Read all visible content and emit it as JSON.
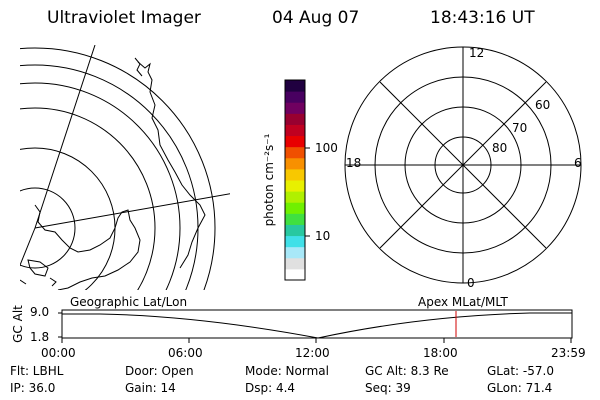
{
  "header": {
    "instrument": "Ultraviolet Imager",
    "date": "04 Aug 07",
    "time": "18:43:16 UT"
  },
  "colorbar": {
    "unit_label": "photon cm⁻²s⁻¹",
    "ticks": [
      "100",
      "10"
    ],
    "colors": [
      "#ffffff",
      "#e0e0e0",
      "#a8e8f8",
      "#40e0e8",
      "#28c8a0",
      "#40e040",
      "#70f000",
      "#b0f000",
      "#e8f000",
      "#f8c800",
      "#f89000",
      "#f05000",
      "#e80000",
      "#c00020",
      "#980030",
      "#700060",
      "#480060",
      "#200040"
    ]
  },
  "left_map": {
    "label": "Geographic Lat/Lon"
  },
  "polar_plot": {
    "label": "Apex  MLat/MLT",
    "mlt_labels": {
      "top": "12",
      "bottom": "0",
      "left": "18",
      "right": "6"
    },
    "lat_labels": [
      "60",
      "70",
      "80"
    ]
  },
  "timeline": {
    "y_axis_label": "GC Alt",
    "y_ticks": [
      "9.0",
      "1.8"
    ],
    "x_ticks": [
      "00:00",
      "06:00",
      "12:00",
      "18:00",
      "23:59"
    ],
    "marker_color": "#d00000"
  },
  "footer": {
    "row1": {
      "filter": "Flt:  LBHL",
      "door": "Door:  Open",
      "mode": "Mode:  Normal",
      "gc_alt": "GC Alt:  8.3 Re",
      "glat": "GLat:  -57.0"
    },
    "row2": {
      "ip": "IP:  36.0",
      "gain": "Gain:  14",
      "dsp": "Dsp:     4.4",
      "seq": "Seq:  39",
      "glon": "GLon:   71.4"
    }
  }
}
